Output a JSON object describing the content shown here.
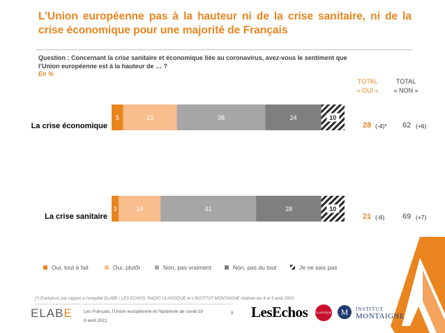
{
  "title": "L’Union européenne pas à la hauteur ni de la crise sanitaire, ni de la crise économique pour une majorité de Français",
  "question": "Question : Concernant la crise sanitaire et économique liée au coronavirus, avez-vous le sentiment que l’Union européenne est à la hauteur de … ?",
  "unit": "En %",
  "columns": {
    "oui_line1": "TOTAL",
    "oui_line2": "« OUI »",
    "non_line1": "TOTAL",
    "non_line2": "« NON »"
  },
  "rows": [
    {
      "label": "La crise économique",
      "total_oui": "28",
      "evol_oui": "(-4)*",
      "total_non": "62",
      "evol_non": "(+6)"
    },
    {
      "label": "La crise sanitaire",
      "total_oui": "21",
      "evol_oui": "(-6)",
      "total_non": "69",
      "evol_non": "(+7)"
    }
  ],
  "legend": [
    {
      "label": "Oui, tout à fait",
      "color": "#E9841F"
    },
    {
      "label": "Oui, plutôt",
      "color": "#F8BE8D"
    },
    {
      "label": "Non, pas vraiment",
      "color": "#A6A6A6"
    },
    {
      "label": "Non, pas du tout",
      "color": "#7F7F7F"
    },
    {
      "label": "Je ne sais pas",
      "color": "hatched"
    }
  ],
  "footnote": "(*) Evolutions par rapport à l’enquête ELABE / LES ECHOS, RADIO CLASSIQUE et L’INSTITUT MONTAIGNE réalisée les 4 et 5 août 2020.",
  "footer": {
    "study": "Les Français, l’Union européenne et l’épidémie de covid-19",
    "date": "8 avril 2021",
    "page": "9",
    "logo_elabe_pre": "ELAB",
    "logo_elabe_post": "E",
    "logo_lesechos": "LesEchos",
    "logo_classique": "CLASSIQUE",
    "logo_im_letter": "M",
    "logo_im_line1": "INSTITUT",
    "logo_im_line2": "MONTAIGNE"
  },
  "chart_data": {
    "type": "bar",
    "orientation": "horizontal",
    "stacked": true,
    "categories": [
      "La crise économique",
      "La crise sanitaire"
    ],
    "series": [
      {
        "name": "Oui, tout à fait",
        "values": [
          5,
          3
        ],
        "color": "#E9841F"
      },
      {
        "name": "Oui, plutôt",
        "values": [
          23,
          18
        ],
        "color": "#F8BE8D"
      },
      {
        "name": "Non, pas vraiment",
        "values": [
          38,
          41
        ],
        "color": "#A6A6A6"
      },
      {
        "name": "Non, pas du tout",
        "values": [
          24,
          28
        ],
        "color": "#7F7F7F"
      },
      {
        "name": "Je ne sais pas",
        "values": [
          10,
          10
        ],
        "color": "hatched"
      }
    ],
    "legend_position": "bottom",
    "grid": false
  }
}
